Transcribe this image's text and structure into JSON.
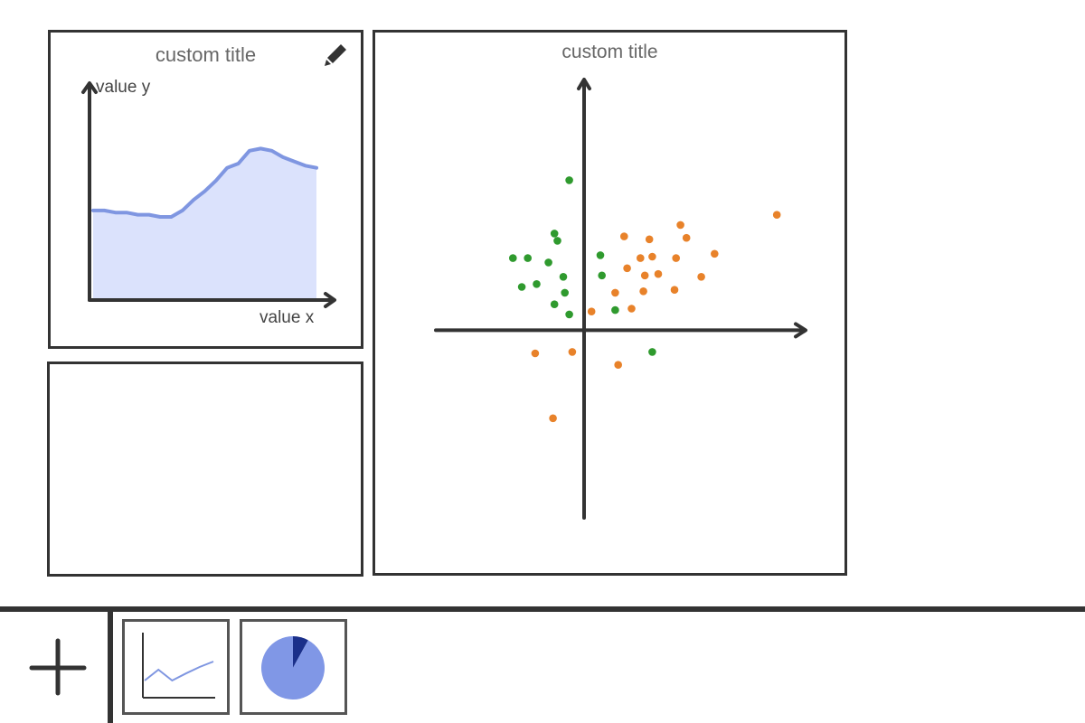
{
  "panels": {
    "area": {
      "title": "custom title",
      "edit_icon": "pencil-icon"
    },
    "scatter": {
      "title": "custom title"
    }
  },
  "chart_data": [
    {
      "type": "area",
      "title": "custom title",
      "xlabel": "value x",
      "ylabel": "value y",
      "x": [
        0,
        1,
        2,
        3,
        4,
        5,
        6,
        7,
        8,
        9,
        10,
        11,
        12,
        13,
        14,
        15,
        16,
        17,
        18,
        19,
        20
      ],
      "series": [
        {
          "values": [
            0.42,
            0.42,
            0.41,
            0.41,
            0.4,
            0.4,
            0.39,
            0.39,
            0.42,
            0.47,
            0.51,
            0.56,
            0.62,
            0.64,
            0.7,
            0.71,
            0.7,
            0.67,
            0.65,
            0.63,
            0.62
          ]
        }
      ],
      "colors": {
        "line": "#7f96e1",
        "fill": "#dbe2fc"
      },
      "ylim": [
        0,
        1
      ],
      "grid": false,
      "legend": "none"
    },
    {
      "type": "scatter",
      "title": "custom title",
      "xlim": [
        -10,
        15
      ],
      "ylim": [
        -13,
        17.5
      ],
      "grid": false,
      "legend": "none",
      "series": [
        {
          "color": "#2f9a2e",
          "points": [
            [
              -1,
              10.4
            ],
            [
              -2,
              6.7
            ],
            [
              -1.8,
              6.2
            ],
            [
              -4.8,
              5.0
            ],
            [
              -3.8,
              5.0
            ],
            [
              -2.4,
              4.7
            ],
            [
              -1.4,
              3.7
            ],
            [
              -4.2,
              3.0
            ],
            [
              -3.2,
              3.2
            ],
            [
              -1.3,
              2.6
            ],
            [
              -2,
              1.8
            ],
            [
              -1,
              1.1
            ],
            [
              1.1,
              5.2
            ],
            [
              1.2,
              3.8
            ],
            [
              2.1,
              1.4
            ],
            [
              4.6,
              -1.5
            ]
          ]
        },
        {
          "color": "#e8822a",
          "points": [
            [
              13,
              8.0
            ],
            [
              6.5,
              7.3
            ],
            [
              2.7,
              6.5
            ],
            [
              4.4,
              6.3
            ],
            [
              6.9,
              6.4
            ],
            [
              8.8,
              5.3
            ],
            [
              6.2,
              5.0
            ],
            [
              3.8,
              5.0
            ],
            [
              4.6,
              5.1
            ],
            [
              2.9,
              4.3
            ],
            [
              4.1,
              3.8
            ],
            [
              5.0,
              3.9
            ],
            [
              7.9,
              3.7
            ],
            [
              6.1,
              2.8
            ],
            [
              2.1,
              2.6
            ],
            [
              4.0,
              2.7
            ],
            [
              3.2,
              1.5
            ],
            [
              0.5,
              1.3
            ],
            [
              -3.3,
              -1.6
            ],
            [
              -0.8,
              -1.5
            ],
            [
              2.3,
              -2.4
            ],
            [
              -2.1,
              -6.1
            ]
          ]
        }
      ]
    }
  ],
  "toolbar": {
    "add_icon": "plus-icon",
    "thumbnails": [
      {
        "icon": "line-chart-icon"
      },
      {
        "icon": "pie-chart-icon"
      }
    ]
  },
  "thumb_pie": {
    "slices": [
      0.08,
      0.92
    ],
    "colors": [
      "#1a2f8a",
      "#8097e6"
    ]
  },
  "thumb_line": {
    "values": [
      0.25,
      0.45,
      0.25,
      0.38,
      0.5,
      0.6
    ],
    "color": "#7f96e1"
  }
}
